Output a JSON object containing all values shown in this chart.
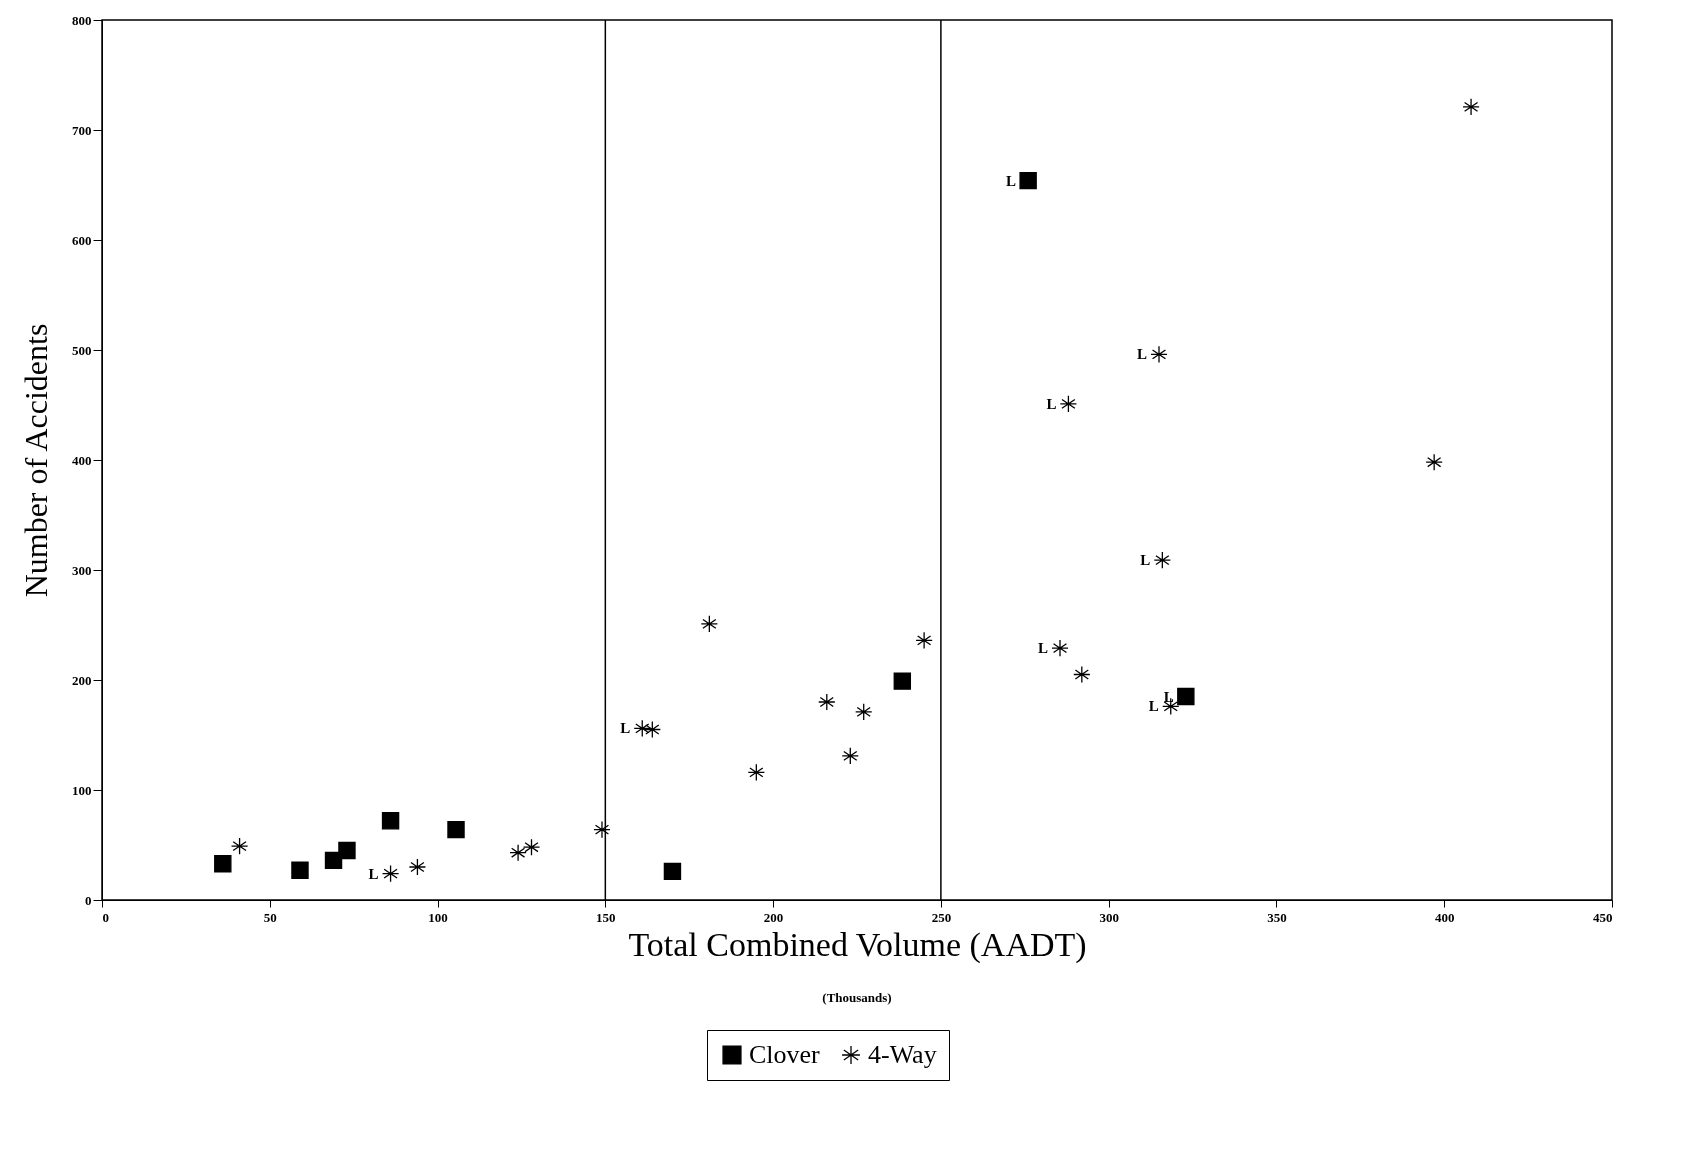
{
  "chart_data": {
    "type": "scatter",
    "xlabel": "Total Combined Volume (AADT)",
    "ylabel": "Number of  Accidents",
    "legend": "bottom",
    "grid": false,
    "xlim": [
      0,
      450
    ],
    "xticks": [
      0,
      50,
      100,
      150,
      200,
      250,
      300,
      350,
      400,
      450
    ],
    "ylim": [
      0,
      800
    ],
    "yticks": [
      0,
      100,
      200,
      300,
      400,
      500,
      600,
      700,
      800
    ],
    "series": [
      {
        "name": "Clover",
        "color": "#000000",
        "marker": "square",
        "x": [
          36,
          59,
          69,
          73,
          86,
          105.5,
          170,
          238.5,
          276,
          323
        ],
        "values": [
          33,
          27,
          36,
          45,
          72,
          64,
          26,
          199,
          654,
          185
        ]
      },
      {
        "name": "4-Way",
        "color": "#000000",
        "marker": "cross",
        "x": [
          41,
          86,
          94,
          124,
          128,
          149,
          161,
          164,
          181,
          195,
          216,
          223,
          227,
          245,
          285.5,
          288,
          292,
          315,
          316,
          318.5,
          397,
          408
        ],
        "values": [
          49,
          24,
          30,
          43,
          48,
          64,
          156,
          155,
          251,
          116,
          180,
          131,
          171,
          236,
          229,
          451,
          205,
          496,
          309,
          176,
          398,
          721
        ]
      }
    ],
    "ref_lines": [
      {
        "axis": "x",
        "value": 150,
        "color": "#000000"
      },
      {
        "axis": "x",
        "value": 250,
        "color": "#000000"
      }
    ],
    "annotations": [
      "(Thousands)",
      {
        "text": "L",
        "x": 276,
        "y": 654
      },
      {
        "text": "L",
        "x": 323,
        "y": 185
      },
      {
        "text": "L",
        "x": 86,
        "y": 24
      },
      {
        "text": "L",
        "x": 161,
        "y": 156
      },
      {
        "text": "L",
        "x": 285.5,
        "y": 229
      },
      {
        "text": "L",
        "x": 288,
        "y": 451
      },
      {
        "text": "L",
        "x": 315,
        "y": 496
      },
      {
        "text": "L",
        "x": 316,
        "y": 309
      },
      {
        "text": "L",
        "x": 318.5,
        "y": 176
      }
    ]
  }
}
